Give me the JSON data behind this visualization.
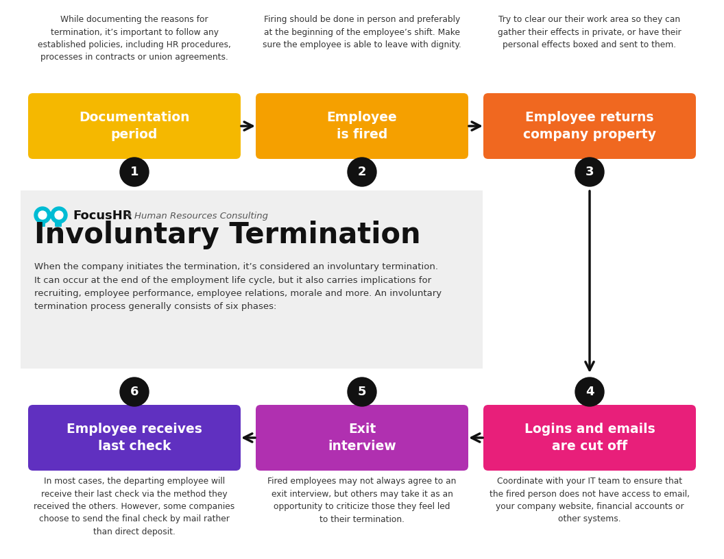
{
  "background_color": "#ffffff",
  "info_panel_color": "#efefef",
  "title": "Involuntary Termination",
  "brand_name": "FocusHR",
  "brand_subtitle": "Human Resources Consulting",
  "description": "When the company initiates the termination, it’s considered an involuntary termination.\nIt can occur at the end of the employment life cycle, but it also carries implications for\nrecruiting, employee performance, employee relations, morale and more. An involuntary\ntermination process generally consists of six phases:",
  "steps": [
    {
      "number": 1,
      "label": "Documentation\nperiod",
      "color": "#f5b800",
      "text_color": "#ffffff",
      "desc": "While documenting the reasons for\ntermination, it’s important to follow any\nestablished policies, including HR procedures,\nprocesses in contracts or union agreements.",
      "row": 0,
      "col": 0
    },
    {
      "number": 2,
      "label": "Employee\nis fired",
      "color": "#f5a000",
      "text_color": "#ffffff",
      "desc": "Firing should be done in person and preferably\nat the beginning of the employee’s shift. Make\nsure the employee is able to leave with dignity.",
      "row": 0,
      "col": 1
    },
    {
      "number": 3,
      "label": "Employee returns\ncompany property",
      "color": "#f06820",
      "text_color": "#ffffff",
      "desc": "Try to clear our their work area so they can\ngather their effects in private, or have their\npersonal effects boxed and sent to them.",
      "row": 0,
      "col": 2
    },
    {
      "number": 4,
      "label": "Logins and emails\nare cut off",
      "color": "#e81f7a",
      "text_color": "#ffffff",
      "desc": "Coordinate with your IT team to ensure that\nthe fired person does not have access to email,\nyour company website, financial accounts or\nother systems.",
      "row": 1,
      "col": 2
    },
    {
      "number": 5,
      "label": "Exit\ninterview",
      "color": "#b030b0",
      "text_color": "#ffffff",
      "desc": "Fired employees may not always agree to an\nexit interview, but others may take it as an\nopportunity to criticize those they feel led\nto their termination.",
      "row": 1,
      "col": 1
    },
    {
      "number": 6,
      "label": "Employee receives\nlast check",
      "color": "#6030c0",
      "text_color": "#ffffff",
      "desc": "In most cases, the departing employee will\nreceive their last check via the method they\nreceived the others. However, some companies\nchoose to send the final check by mail rather\nthan direct deposit.",
      "row": 1,
      "col": 0
    }
  ],
  "bino_color": "#00bcd4",
  "num_circle_color": "#111111",
  "arrow_color": "#111111"
}
